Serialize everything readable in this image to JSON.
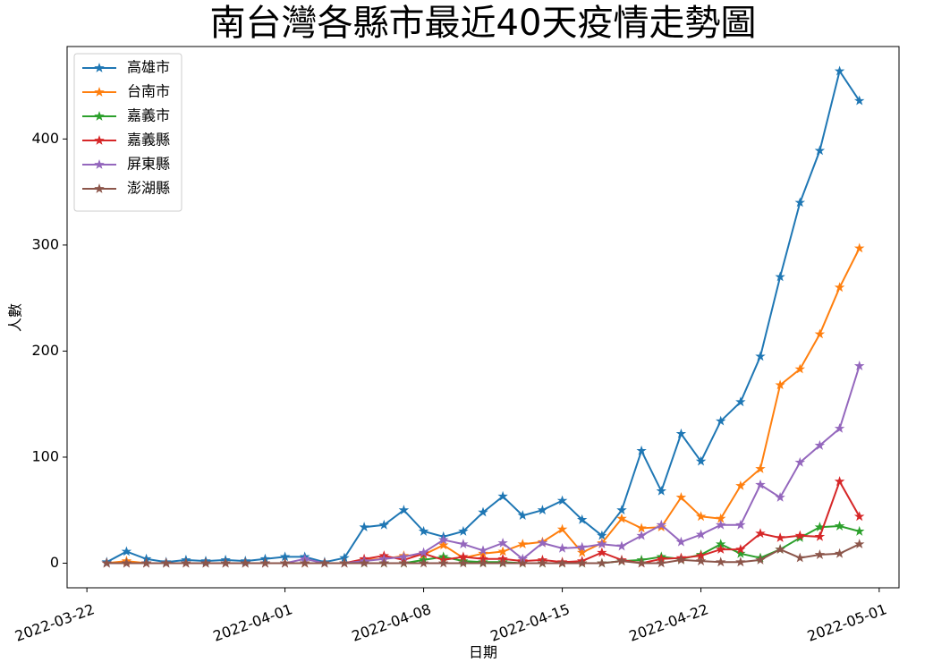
{
  "chart_data": {
    "type": "line",
    "title": "南台灣各縣市最近40天疫情走勢圖",
    "xlabel": "日期",
    "ylabel": "人數",
    "x": [
      "2022-03-23",
      "2022-03-24",
      "2022-03-25",
      "2022-03-26",
      "2022-03-27",
      "2022-03-28",
      "2022-03-29",
      "2022-03-30",
      "2022-03-31",
      "2022-04-01",
      "2022-04-02",
      "2022-04-03",
      "2022-04-04",
      "2022-04-05",
      "2022-04-06",
      "2022-04-07",
      "2022-04-08",
      "2022-04-09",
      "2022-04-10",
      "2022-04-11",
      "2022-04-12",
      "2022-04-13",
      "2022-04-14",
      "2022-04-15",
      "2022-04-16",
      "2022-04-17",
      "2022-04-18",
      "2022-04-19",
      "2022-04-20",
      "2022-04-21",
      "2022-04-22",
      "2022-04-23",
      "2022-04-24",
      "2022-04-25",
      "2022-04-26",
      "2022-04-27",
      "2022-04-28",
      "2022-04-29",
      "2022-04-30"
    ],
    "series": [
      {
        "name": "高雄市",
        "color": "#1f77b4",
        "values": [
          1,
          11,
          4,
          1,
          3,
          2,
          3,
          2,
          4,
          6,
          6,
          1,
          5,
          34,
          36,
          50,
          30,
          25,
          30,
          48,
          63,
          45,
          50,
          59,
          41,
          26,
          50,
          106,
          68,
          122,
          96,
          134,
          152,
          195,
          270,
          340,
          389,
          464,
          436
        ]
      },
      {
        "name": "台南市",
        "color": "#ff7f0e",
        "values": [
          0,
          2,
          0,
          0,
          0,
          0,
          0,
          0,
          0,
          0,
          0,
          0,
          0,
          3,
          4,
          7,
          8,
          17,
          5,
          9,
          11,
          18,
          20,
          32,
          10,
          19,
          42,
          33,
          34,
          62,
          44,
          42,
          73,
          89,
          168,
          183,
          216,
          260,
          297
        ]
      },
      {
        "name": "嘉義市",
        "color": "#2ca02c",
        "values": [
          0,
          0,
          0,
          0,
          0,
          0,
          0,
          0,
          0,
          0,
          0,
          0,
          0,
          0,
          0,
          0,
          3,
          6,
          2,
          1,
          1,
          0,
          0,
          0,
          0,
          0,
          2,
          3,
          6,
          4,
          8,
          18,
          9,
          5,
          13,
          24,
          34,
          35,
          30
        ]
      },
      {
        "name": "嘉義縣",
        "color": "#d62728",
        "values": [
          0,
          0,
          0,
          0,
          0,
          0,
          0,
          0,
          0,
          0,
          0,
          0,
          0,
          4,
          7,
          3,
          9,
          3,
          6,
          4,
          4,
          2,
          3,
          1,
          2,
          10,
          3,
          0,
          4,
          5,
          7,
          13,
          13,
          28,
          24,
          26,
          25,
          77,
          44
        ]
      },
      {
        "name": "屏東縣",
        "color": "#9467bd",
        "values": [
          0,
          0,
          0,
          0,
          0,
          0,
          0,
          0,
          0,
          0,
          4,
          0,
          0,
          2,
          4,
          6,
          10,
          22,
          18,
          12,
          19,
          4,
          19,
          14,
          15,
          18,
          16,
          26,
          36,
          20,
          27,
          36,
          36,
          74,
          62,
          95,
          111,
          127,
          186
        ]
      },
      {
        "name": "澎湖縣",
        "color": "#8c564b",
        "values": [
          0,
          0,
          0,
          0,
          0,
          0,
          0,
          0,
          0,
          0,
          0,
          0,
          0,
          0,
          0,
          0,
          0,
          0,
          0,
          0,
          0,
          0,
          0,
          0,
          0,
          0,
          2,
          0,
          0,
          3,
          2,
          1,
          1,
          3,
          13,
          5,
          8,
          9,
          18
        ]
      }
    ],
    "xlim": [
      "2022-03-21",
      "2022-05-02"
    ],
    "xticks": [
      "2022-03-22",
      "2022-04-01",
      "2022-04-08",
      "2022-04-15",
      "2022-04-22",
      "2022-05-01"
    ],
    "ylim": [
      -23.2,
      487.2
    ],
    "yticks": [
      0,
      100,
      200,
      300,
      400
    ],
    "legend": "upper left",
    "marker": "star"
  }
}
